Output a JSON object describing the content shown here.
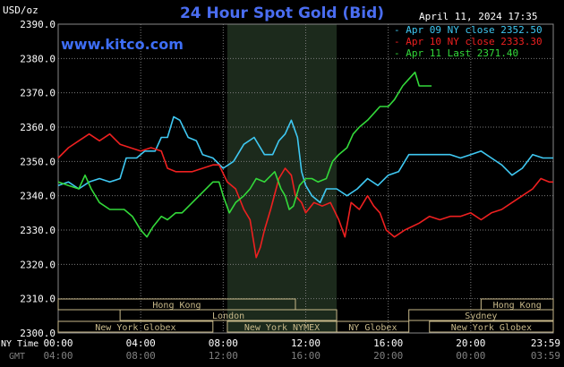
{
  "title": "24 Hour Spot Gold (Bid)",
  "watermark": "www.kitco.com",
  "unit_label": "USD/oz",
  "datetime": "April 11, 2024 17:35",
  "legend": [
    {
      "label": "Apr 09 NY close",
      "value": "2352.50",
      "color": "#3fc8f2"
    },
    {
      "label": "Apr 10 NY close",
      "value": "2333.30",
      "color": "#ee2020"
    },
    {
      "label": "Apr 11 Last",
      "value": "2371.40",
      "color": "#33d93a"
    }
  ],
  "colors": {
    "background": "#000000",
    "grid": "#7a7a7a",
    "highlight": "#1c2a1c",
    "session_box": "#c8b98a",
    "axis_text": "#ffffff",
    "gmt_text": "#808080"
  },
  "axis": {
    "y_ticks": [
      "2390.0",
      "2380.0",
      "2370.0",
      "2360.0",
      "2350.0",
      "2340.0",
      "2330.0",
      "2320.0",
      "2310.0",
      "2300.0"
    ],
    "ny_label": "NY Time",
    "gmt_label": "GMT",
    "ny_times": [
      "00:00",
      "04:00",
      "08:00",
      "12:00",
      "16:00",
      "20:00",
      "23:59"
    ],
    "gmt_times": [
      "04:00",
      "08:00",
      "12:00",
      "16:00",
      "20:00",
      "00:00",
      "03:59"
    ]
  },
  "sessions": [
    {
      "label": "Hong Kong",
      "x0": 0,
      "x1": 11.5,
      "row": 0
    },
    {
      "label": "Hong Kong",
      "x0": 20.5,
      "x1": 24,
      "row": 0
    },
    {
      "label": "London",
      "x0": 3,
      "x1": 13.5,
      "row": 1
    },
    {
      "label": "Sydney",
      "x0": 17,
      "x1": 24,
      "row": 1
    },
    {
      "label": "New York Globex",
      "x0": 0,
      "x1": 7.5,
      "row": 2
    },
    {
      "label": "New York NYMEX",
      "x0": 8.2,
      "x1": 13.5,
      "row": 2
    },
    {
      "label": "NY Globex",
      "x0": 13.5,
      "x1": 17,
      "row": 2
    },
    {
      "label": "New York Globex",
      "x0": 18,
      "x1": 24,
      "row": 2
    }
  ],
  "chart_data": {
    "type": "line",
    "x_unit": "hours (NY time)",
    "xlim": [
      0,
      24
    ],
    "ylim": [
      2300,
      2390
    ],
    "grid": true,
    "legend_position": "top-right",
    "highlight_range": [
      8.2,
      13.5
    ],
    "series": [
      {
        "name": "Apr 09 NY close",
        "color": "#3fc8f2",
        "points": [
          [
            0,
            2343
          ],
          [
            0.5,
            2344
          ],
          [
            1,
            2342
          ],
          [
            1.5,
            2344
          ],
          [
            2,
            2345
          ],
          [
            2.5,
            2344
          ],
          [
            3,
            2345
          ],
          [
            3.3,
            2351
          ],
          [
            3.8,
            2351
          ],
          [
            4.2,
            2353
          ],
          [
            4.7,
            2353
          ],
          [
            5,
            2357
          ],
          [
            5.3,
            2357
          ],
          [
            5.6,
            2363
          ],
          [
            5.9,
            2362
          ],
          [
            6.3,
            2357
          ],
          [
            6.7,
            2356
          ],
          [
            7,
            2352
          ],
          [
            7.5,
            2351
          ],
          [
            8,
            2348
          ],
          [
            8.5,
            2350
          ],
          [
            9,
            2355
          ],
          [
            9.5,
            2357
          ],
          [
            10,
            2352
          ],
          [
            10.4,
            2352
          ],
          [
            10.7,
            2356
          ],
          [
            11,
            2358
          ],
          [
            11.3,
            2362
          ],
          [
            11.6,
            2357
          ],
          [
            11.8,
            2347
          ],
          [
            12,
            2343
          ],
          [
            12.3,
            2340
          ],
          [
            12.7,
            2338
          ],
          [
            13,
            2342
          ],
          [
            13.5,
            2342
          ],
          [
            14,
            2340
          ],
          [
            14.5,
            2342
          ],
          [
            15,
            2345
          ],
          [
            15.5,
            2343
          ],
          [
            16,
            2346
          ],
          [
            16.5,
            2347
          ],
          [
            17,
            2352
          ],
          [
            17.5,
            2352
          ],
          [
            18,
            2352
          ],
          [
            18.5,
            2352
          ],
          [
            19,
            2352
          ],
          [
            19.5,
            2351
          ],
          [
            20,
            2352
          ],
          [
            20.5,
            2353
          ],
          [
            21,
            2351
          ],
          [
            21.5,
            2349
          ],
          [
            22,
            2346
          ],
          [
            22.5,
            2348
          ],
          [
            23,
            2352
          ],
          [
            23.5,
            2351
          ],
          [
            24,
            2351
          ]
        ]
      },
      {
        "name": "Apr 10 NY close",
        "color": "#ee2020",
        "points": [
          [
            0,
            2351
          ],
          [
            0.5,
            2354
          ],
          [
            1,
            2356
          ],
          [
            1.5,
            2358
          ],
          [
            2,
            2356
          ],
          [
            2.5,
            2358
          ],
          [
            3,
            2355
          ],
          [
            3.5,
            2354
          ],
          [
            4,
            2353
          ],
          [
            4.5,
            2354
          ],
          [
            5,
            2353
          ],
          [
            5.3,
            2348
          ],
          [
            5.7,
            2347
          ],
          [
            6,
            2347
          ],
          [
            6.5,
            2347
          ],
          [
            7,
            2348
          ],
          [
            7.5,
            2349
          ],
          [
            7.8,
            2349
          ],
          [
            8.2,
            2344
          ],
          [
            8.6,
            2342
          ],
          [
            9,
            2336
          ],
          [
            9.3,
            2333
          ],
          [
            9.6,
            2322
          ],
          [
            9.8,
            2325
          ],
          [
            10,
            2330
          ],
          [
            10.3,
            2336
          ],
          [
            10.7,
            2345
          ],
          [
            11,
            2348
          ],
          [
            11.3,
            2346
          ],
          [
            11.5,
            2340
          ],
          [
            11.8,
            2338
          ],
          [
            12,
            2335
          ],
          [
            12.4,
            2338
          ],
          [
            12.8,
            2337
          ],
          [
            13.2,
            2338
          ],
          [
            13.6,
            2333
          ],
          [
            13.9,
            2328
          ],
          [
            14.2,
            2338
          ],
          [
            14.6,
            2336
          ],
          [
            15,
            2340
          ],
          [
            15.3,
            2337
          ],
          [
            15.6,
            2335
          ],
          [
            15.9,
            2330
          ],
          [
            16.3,
            2328
          ],
          [
            16.8,
            2330
          ],
          [
            17.5,
            2332
          ],
          [
            18,
            2334
          ],
          [
            18.5,
            2333
          ],
          [
            19,
            2334
          ],
          [
            19.5,
            2334
          ],
          [
            20,
            2335
          ],
          [
            20.5,
            2333
          ],
          [
            21,
            2335
          ],
          [
            21.5,
            2336
          ],
          [
            22,
            2338
          ],
          [
            22.5,
            2340
          ],
          [
            23,
            2342
          ],
          [
            23.4,
            2345
          ],
          [
            23.8,
            2344
          ],
          [
            24,
            2344
          ]
        ]
      },
      {
        "name": "Apr 11 Last",
        "color": "#33d93a",
        "points": [
          [
            0,
            2344
          ],
          [
            0.5,
            2343
          ],
          [
            1,
            2342
          ],
          [
            1.3,
            2346
          ],
          [
            1.6,
            2342
          ],
          [
            2,
            2338
          ],
          [
            2.5,
            2336
          ],
          [
            2.8,
            2336
          ],
          [
            3.2,
            2336
          ],
          [
            3.6,
            2334
          ],
          [
            4,
            2330
          ],
          [
            4.3,
            2328
          ],
          [
            4.6,
            2331
          ],
          [
            5,
            2334
          ],
          [
            5.3,
            2333
          ],
          [
            5.7,
            2335
          ],
          [
            6,
            2335
          ],
          [
            6.5,
            2338
          ],
          [
            7,
            2341
          ],
          [
            7.5,
            2344
          ],
          [
            7.8,
            2344
          ],
          [
            8,
            2340
          ],
          [
            8.3,
            2335
          ],
          [
            8.6,
            2338
          ],
          [
            9,
            2340
          ],
          [
            9.3,
            2342
          ],
          [
            9.6,
            2345
          ],
          [
            10,
            2344
          ],
          [
            10.5,
            2347
          ],
          [
            10.8,
            2342
          ],
          [
            11,
            2340
          ],
          [
            11.2,
            2336
          ],
          [
            11.4,
            2337
          ],
          [
            11.7,
            2343
          ],
          [
            12,
            2345
          ],
          [
            12.3,
            2345
          ],
          [
            12.6,
            2344
          ],
          [
            13,
            2345
          ],
          [
            13.3,
            2350
          ],
          [
            13.6,
            2352
          ],
          [
            14,
            2354
          ],
          [
            14.3,
            2358
          ],
          [
            14.6,
            2360
          ],
          [
            15,
            2362
          ],
          [
            15.3,
            2364
          ],
          [
            15.6,
            2366
          ],
          [
            16,
            2366
          ],
          [
            16.3,
            2368
          ],
          [
            16.7,
            2372
          ],
          [
            17,
            2374
          ],
          [
            17.3,
            2376
          ],
          [
            17.5,
            2372
          ],
          [
            17.8,
            2372
          ],
          [
            18.1,
            2372
          ]
        ]
      }
    ]
  }
}
